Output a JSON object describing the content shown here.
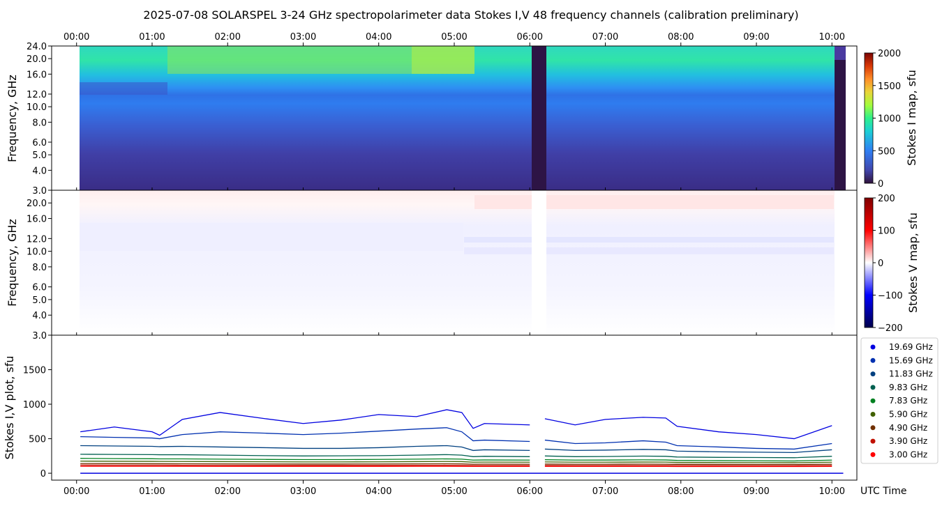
{
  "title": "2025-07-08  SOLARSPEL  3-24 GHz spectropolarimeter data   Stokes I,V   48 frequency channels   (calibration preliminary)",
  "chart_data": [
    {
      "type": "heatmap",
      "panel": "stokes-i-map",
      "ylabel": "Frequency, GHz",
      "ylim": [
        3.0,
        24.0
      ],
      "yscale": "log",
      "yticks": [
        "3.0",
        "4.0",
        "5.0",
        "6.0",
        "8.0",
        "10.0",
        "12.0",
        "16.0",
        "20.0",
        "24.0"
      ],
      "xticks": [
        "00:00",
        "01:00",
        "02:00",
        "03:00",
        "04:00",
        "05:00",
        "06:00",
        "07:00",
        "08:00",
        "09:00",
        "10:00"
      ],
      "xlim_hours": [
        -0.33,
        10.33
      ],
      "data_start_hours": 0.04,
      "data_end_hours": 10.15,
      "gaps_hours": [
        [
          6.0,
          6.2
        ],
        [
          10.02,
          10.15
        ]
      ],
      "colorbar": {
        "label": "Stokes I map, sfu",
        "range": [
          0,
          2000
        ],
        "ticks": [
          "0",
          "500",
          "1000",
          "1500",
          "2000"
        ],
        "colormap": "turbo-like"
      },
      "colors": {
        "low": "#3b2f8c",
        "mid": "#2b7be0",
        "high": "#b8ef3a",
        "gap": "#2d1445"
      }
    },
    {
      "type": "heatmap",
      "panel": "stokes-v-map",
      "ylabel": "Frequency, GHz",
      "ylim": [
        3.0,
        24.0
      ],
      "yscale": "log",
      "yticks": [
        "3.0",
        "4.0",
        "5.0",
        "6.0",
        "8.0",
        "10.0",
        "12.0",
        "16.0",
        "20.0"
      ],
      "colorbar": {
        "label": "Stokes V map, sfu",
        "range": [
          -200,
          200
        ],
        "ticks": [
          "−200",
          "−100",
          "0",
          "100",
          "200"
        ],
        "colormap": "seismic"
      },
      "colors": {
        "neg": "#00008b",
        "zero": "#ffffff",
        "pos": "#8b0000"
      }
    },
    {
      "type": "line",
      "panel": "stokes-iv-plot",
      "ylabel": "Stokes I,V plot, sfu",
      "xlabel": "UTC Time",
      "ylim": [
        -100,
        2000
      ],
      "yticks": [
        "0",
        "500",
        "1000",
        "1500"
      ],
      "xticks": [
        "00:00",
        "01:00",
        "02:00",
        "03:00",
        "04:00",
        "05:00",
        "06:00",
        "07:00",
        "08:00",
        "09:00",
        "10:00"
      ],
      "x_hours": [
        0.05,
        0.5,
        1.0,
        1.1,
        1.4,
        1.9,
        2.5,
        3.0,
        3.5,
        4.0,
        4.5,
        4.9,
        5.1,
        5.25,
        5.4,
        6.0,
        6.2,
        6.6,
        7.0,
        7.5,
        7.8,
        7.95,
        8.5,
        9.0,
        9.5,
        10.0
      ],
      "series": [
        {
          "name": "19.69 GHz",
          "color": "#0000e0",
          "values": [
            600,
            670,
            600,
            550,
            780,
            880,
            790,
            720,
            770,
            850,
            820,
            920,
            880,
            650,
            720,
            700,
            790,
            700,
            780,
            810,
            800,
            680,
            600,
            560,
            500,
            690
          ]
        },
        {
          "name": "15.69 GHz",
          "color": "#0030b0",
          "values": [
            530,
            520,
            510,
            500,
            560,
            600,
            580,
            560,
            580,
            610,
            640,
            660,
            600,
            470,
            480,
            460,
            480,
            430,
            440,
            470,
            450,
            400,
            380,
            360,
            350,
            430
          ]
        },
        {
          "name": "11.83 GHz",
          "color": "#004080",
          "values": [
            400,
            395,
            390,
            385,
            390,
            380,
            370,
            360,
            360,
            370,
            390,
            400,
            380,
            330,
            340,
            330,
            350,
            330,
            335,
            345,
            340,
            320,
            310,
            305,
            300,
            340
          ]
        },
        {
          "name": "9.83 GHz",
          "color": "#006050",
          "values": [
            275,
            272,
            270,
            268,
            268,
            262,
            255,
            250,
            252,
            255,
            262,
            270,
            262,
            240,
            245,
            240,
            250,
            240,
            242,
            248,
            245,
            235,
            230,
            228,
            225,
            245
          ]
        },
        {
          "name": "7.83 GHz",
          "color": "#008020",
          "values": [
            215,
            212,
            210,
            208,
            208,
            204,
            200,
            198,
            198,
            200,
            204,
            208,
            204,
            190,
            192,
            190,
            196,
            190,
            191,
            194,
            192,
            186,
            182,
            180,
            178,
            190
          ]
        },
        {
          "name": "5.90 GHz",
          "color": "#406000",
          "values": [
            175,
            173,
            172,
            171,
            170,
            168,
            166,
            164,
            164,
            165,
            168,
            170,
            168,
            160,
            161,
            160,
            164,
            160,
            160,
            162,
            161,
            157,
            155,
            154,
            153,
            160
          ]
        },
        {
          "name": "4.90 GHz",
          "color": "#703000",
          "values": [
            140,
            139,
            138,
            138,
            137,
            136,
            135,
            134,
            134,
            135,
            136,
            137,
            136,
            131,
            132,
            131,
            133,
            131,
            131,
            132,
            131,
            129,
            128,
            127,
            127,
            131
          ]
        },
        {
          "name": "3.90 GHz",
          "color": "#c01000",
          "values": [
            118,
            117,
            117,
            117,
            116,
            116,
            115,
            115,
            115,
            115,
            116,
            116,
            116,
            113,
            113,
            113,
            114,
            113,
            113,
            113,
            113,
            112,
            111,
            111,
            111,
            113
          ]
        },
        {
          "name": "3.00 GHz",
          "color": "#ff0000",
          "values": [
            100,
            100,
            100,
            100,
            100,
            99,
            99,
            99,
            99,
            99,
            100,
            100,
            99,
            98,
            98,
            98,
            98,
            98,
            98,
            98,
            98,
            97,
            97,
            97,
            97,
            98
          ]
        }
      ],
      "v_series_value": 0
    }
  ]
}
